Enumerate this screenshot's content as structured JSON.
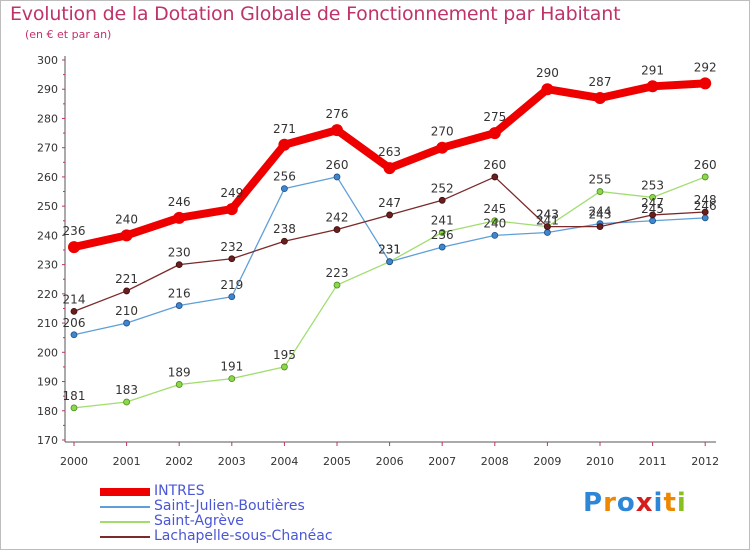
{
  "header": {
    "title": "Evolution de la Dotation Globale de Fonctionnement par Habitant",
    "subtitle": "(en € et par an)"
  },
  "colors": {
    "INTRES": "#ee0000",
    "Saint-Julien-Boutières": "#5f9fd8",
    "Saint-Agrève": "#a0dd6e",
    "Lachapelle-sous-Chanéac": "#7a2a2a"
  },
  "chart_data": {
    "type": "line",
    "title": "Evolution de la Dotation Globale de Fonctionnement par Habitant",
    "subtitle": "(en € et par an)",
    "x": [
      "2000",
      "2001",
      "2002",
      "2003",
      "2004",
      "2005",
      "2006",
      "2007",
      "2008",
      "2009",
      "2010",
      "2011",
      "2012"
    ],
    "ylim": [
      170,
      300
    ],
    "yticks": [
      170,
      180,
      190,
      200,
      210,
      220,
      230,
      240,
      250,
      260,
      270,
      280,
      290,
      300
    ],
    "grid": false,
    "legend": "bottom-left",
    "series": [
      {
        "name": "INTRES",
        "values": [
          236,
          240,
          246,
          249,
          271,
          276,
          263,
          270,
          275,
          290,
          287,
          291,
          292
        ]
      },
      {
        "name": "Saint-Julien-Boutières",
        "values": [
          206,
          210,
          216,
          219,
          256,
          260,
          231,
          236,
          240,
          241,
          244,
          245,
          246
        ]
      },
      {
        "name": "Saint-Agrève",
        "values": [
          181,
          183,
          189,
          191,
          195,
          223,
          231,
          241,
          245,
          243,
          255,
          253,
          260
        ]
      },
      {
        "name": "Lachapelle-sous-Chanéac",
        "values": [
          214,
          221,
          230,
          232,
          238,
          242,
          247,
          252,
          260,
          243,
          243,
          247,
          248
        ]
      }
    ]
  },
  "legend": {
    "items": [
      {
        "label": "INTRES"
      },
      {
        "label": "Saint-Julien-Boutières"
      },
      {
        "label": "Saint-Agrève"
      },
      {
        "label": "Lachapelle-sous-Chanéac"
      }
    ]
  },
  "logo": {
    "letters": [
      "P",
      "r",
      "o",
      "x",
      "i",
      "t",
      "i"
    ],
    "letter_colors": [
      "#2e86d6",
      "#ee8800",
      "#2e86d6",
      "#d81b1b",
      "#2e86d6",
      "#ee8800",
      "#88c020"
    ]
  }
}
